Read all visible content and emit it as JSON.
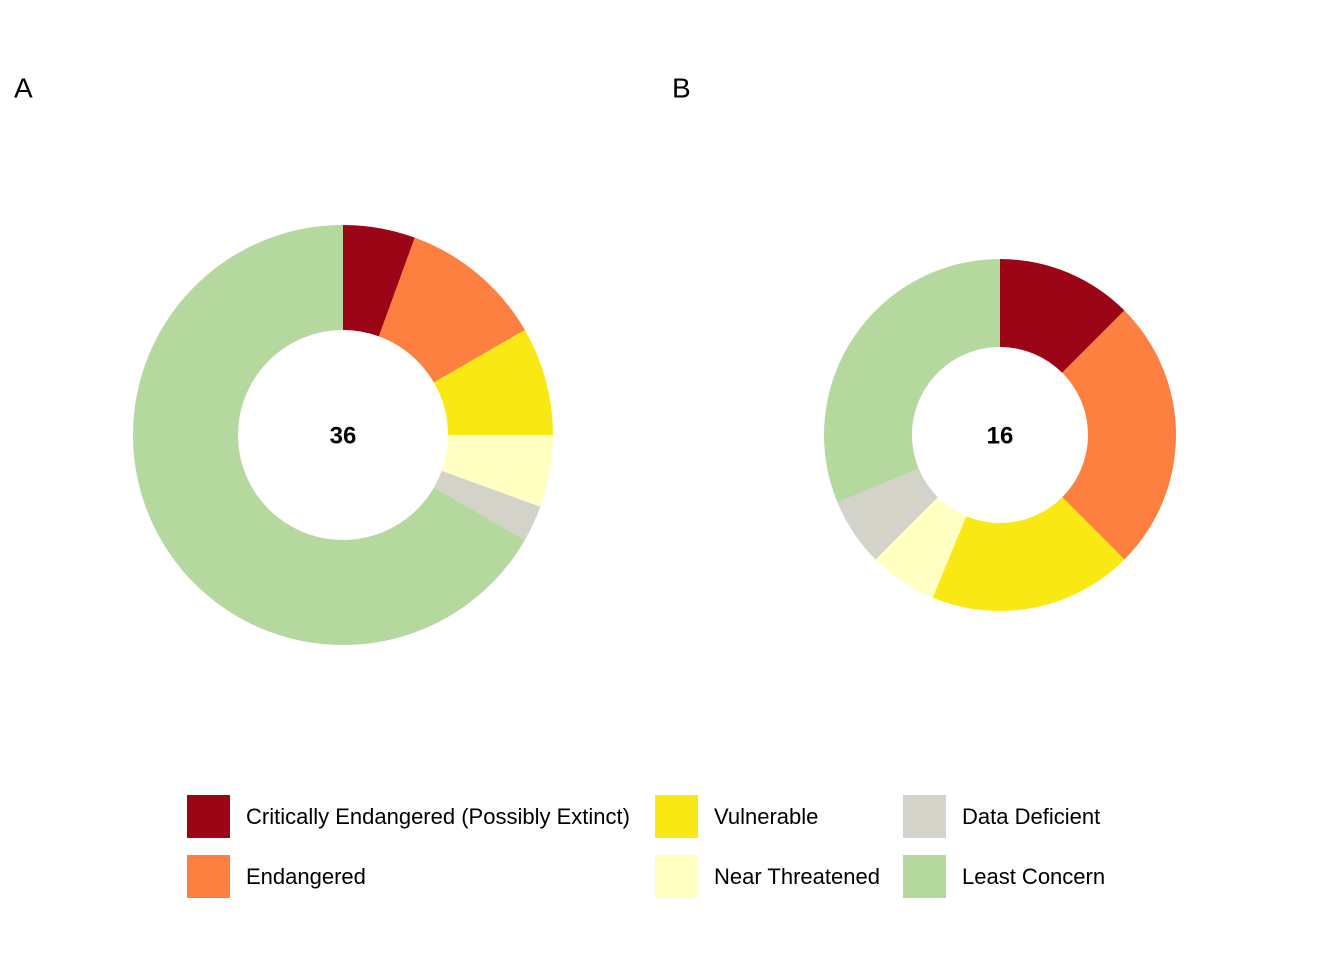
{
  "chart_data": [
    {
      "type": "donut",
      "title": "A",
      "total": 36,
      "categories": [
        "Critically Endangered (Possibly Extinct)",
        "Endangered",
        "Vulnerable",
        "Near Threatened",
        "Data Deficient",
        "Least Concern"
      ],
      "values": [
        2,
        4,
        3,
        2,
        1,
        24
      ],
      "colors": [
        "#9b0515",
        "#fd8040",
        "#f9e814",
        "#feffc0",
        "#d3d3c9",
        "#b4d89e"
      ]
    },
    {
      "type": "donut",
      "title": "B",
      "total": 16,
      "categories": [
        "Critically Endangered (Possibly Extinct)",
        "Endangered",
        "Vulnerable",
        "Near Threatened",
        "Data Deficient",
        "Least Concern"
      ],
      "values": [
        2,
        4,
        3,
        1,
        1,
        5
      ],
      "colors": [
        "#9b0515",
        "#fd8040",
        "#f9e814",
        "#feffc0",
        "#d3d3c9",
        "#b4d89e"
      ]
    }
  ]
}
